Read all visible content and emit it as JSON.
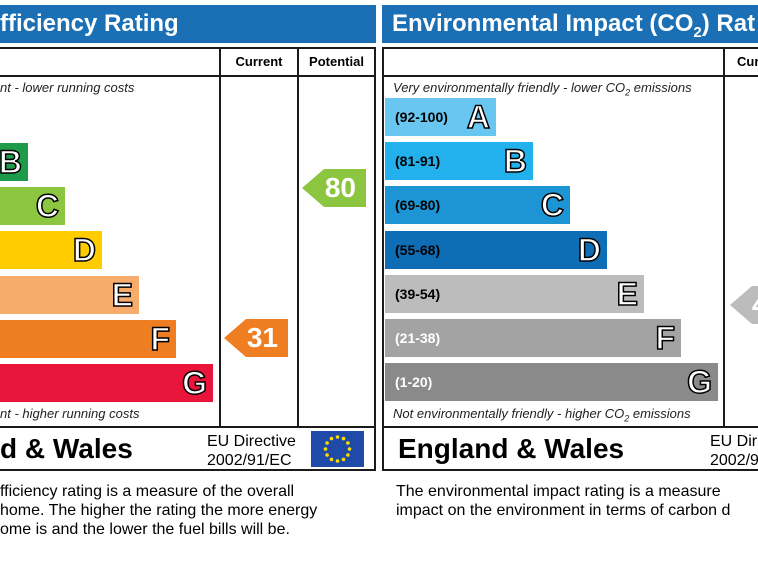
{
  "energy": {
    "title": "fficiency Rating",
    "col_current": "Current",
    "col_potential": "Potential",
    "top_note": "nt - lower running costs",
    "bottom_note": "nt - higher running costs",
    "bands": [
      {
        "letter": "B",
        "color": "#1e9a4b"
      },
      {
        "letter": "C",
        "color": "#8cc53f"
      },
      {
        "letter": "D",
        "color": "#ffcc00"
      },
      {
        "letter": "E",
        "color": "#f7ac6b"
      },
      {
        "letter": "F",
        "color": "#ef7d22"
      },
      {
        "letter": "G",
        "color": "#e9153b"
      }
    ],
    "current_value": "31",
    "current_color": "#ef7d22",
    "potential_value": "80",
    "potential_color": "#8cc53f",
    "footer_region": "d & Wales",
    "eu_line1": "EU Directive",
    "eu_line2": "2002/91/EC",
    "desc_line1": "fficiency rating is a measure of the overall",
    "desc_line2": " home.  The higher the rating the more energy",
    "desc_line3": "ome is and the lower the fuel bills will be."
  },
  "environment": {
    "title_pre": "Environmental Impact (CO",
    "title_sub": "2",
    "title_post": ") Rat",
    "col_current": "Cur",
    "top_note_pre": "Very environmentally friendly - lower CO",
    "top_note_sub": "2",
    "top_note_post": " emissions",
    "bottom_note_pre": "Not environmentally friendly - higher CO",
    "bottom_note_sub": "2",
    "bottom_note_post": " emissions",
    "bands": [
      {
        "range": "(92-100)",
        "letter": "A",
        "color": "#69c6f0",
        "range_color": "#000000"
      },
      {
        "range": "(81-91)",
        "letter": "B",
        "color": "#22b1ec",
        "range_color": "#000000"
      },
      {
        "range": "(69-80)",
        "letter": "C",
        "color": "#1d94d3",
        "range_color": "#000000"
      },
      {
        "range": "(55-68)",
        "letter": "D",
        "color": "#0e6db5",
        "range_color": "#000000"
      },
      {
        "range": "(39-54)",
        "letter": "E",
        "color": "#bcbcbc",
        "range_color": "#000000"
      },
      {
        "range": "(21-38)",
        "letter": "F",
        "color": "#a3a3a3",
        "range_color": "#ffffff"
      },
      {
        "range": "(1-20)",
        "letter": "G",
        "color": "#8a8a8a",
        "range_color": "#ffffff"
      }
    ],
    "current_value": "4",
    "current_color": "#bcbcbc",
    "footer_region": "England & Wales",
    "eu_line1": "EU Dir",
    "eu_line2": "2002/9",
    "desc_line1": "The environmental impact rating is a measure",
    "desc_line2": "impact on the environment in terms of carbon d"
  }
}
